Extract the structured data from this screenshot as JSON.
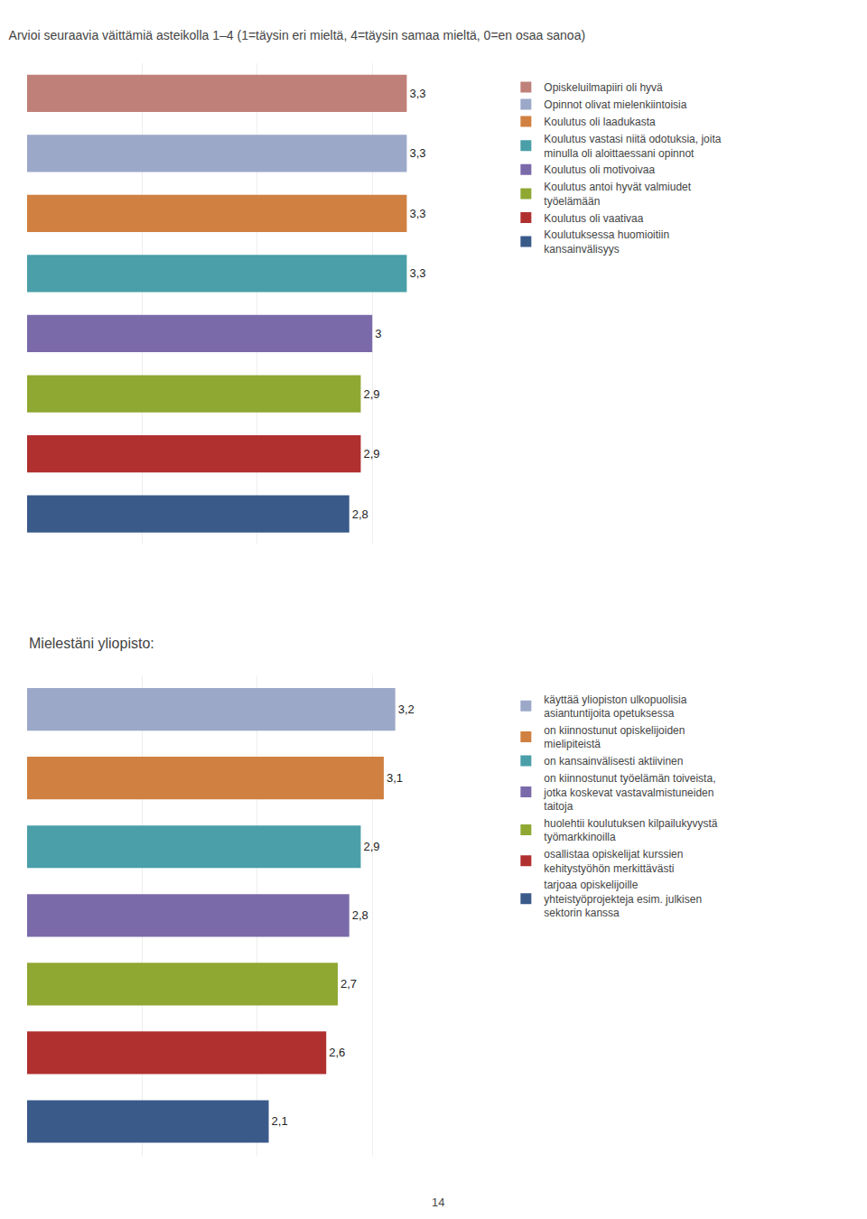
{
  "chart_data": [
    {
      "type": "bar",
      "title": "Arvioi seuraavia väittämiä asteikolla 1–4 (1=täysin eri mieltä, 4=täysin samaa mieltä, 0=en osaa sanoa)",
      "orientation": "horizontal",
      "categories": [
        "Opiskeluilmapiiri oli hyvä",
        "Opinnot olivat mielenkiintoisia",
        "Koulutus oli laadukasta",
        "Koulutus vastasi niitä odotuksia, joita\nminulla oli aloittaessani opinnot",
        "Koulutus oli motivoivaa",
        "Koulutus antoi hyvät valmiudet\ntyöelämään",
        "Koulutus oli vaativaa",
        "Koulutuksessa huomioitiin\nkansainvälisyys"
      ],
      "values": [
        3.3,
        3.3,
        3.3,
        3.3,
        3.0,
        2.9,
        2.9,
        2.8
      ],
      "value_labels": [
        "3,3",
        "3,3",
        "3,3",
        "3,3",
        "3",
        "2,9",
        "2,9",
        "2,8"
      ],
      "colors": [
        "#c0807a",
        "#9ba8c8",
        "#d08040",
        "#4a9fa8",
        "#7b6aaa",
        "#8fa832",
        "#b03030",
        "#3a5a8a"
      ],
      "data_labels": true,
      "xlim": [
        0,
        4
      ],
      "xticks": [
        0,
        1,
        2,
        3,
        4
      ],
      "grid": true,
      "tick_labels": false,
      "legend": "right"
    },
    {
      "type": "bar",
      "title": "Mielestäni yliopisto:",
      "orientation": "horizontal",
      "categories": [
        "käyttää yliopiston ulkopuolisia\nasiantuntijoita opetuksessa",
        "on kiinnostunut opiskelijoiden\nmielipiteistä",
        "on kansainvälisesti aktiivinen",
        "on kiinnostunut työelämän toiveista,\njotka koskevat vastavalmistuneiden\ntaitoja",
        "huolehtii koulutuksen kilpailukyvystä\ntyömarkkinoilla",
        "osallistaa opiskelijat kurssien\nkehitystyöhön merkittävästi",
        "tarjoaa opiskelijoille\nyhteistyöprojekteja esim. julkisen\nsektorin kanssa"
      ],
      "values": [
        3.2,
        3.1,
        2.9,
        2.8,
        2.7,
        2.6,
        2.1
      ],
      "value_labels": [
        "3,2",
        "3,1",
        "2,9",
        "2,8",
        "2,7",
        "2,6",
        "2,1"
      ],
      "colors": [
        "#9ba8c8",
        "#d08040",
        "#4a9fa8",
        "#7b6aaa",
        "#8fa832",
        "#b03030",
        "#3a5a8a"
      ],
      "data_labels": true,
      "xlim": [
        0,
        4
      ],
      "xticks": [
        0,
        1,
        2,
        3,
        4
      ],
      "grid": true,
      "tick_labels": false,
      "legend": "right",
      "annotations": [
        "14"
      ]
    }
  ]
}
